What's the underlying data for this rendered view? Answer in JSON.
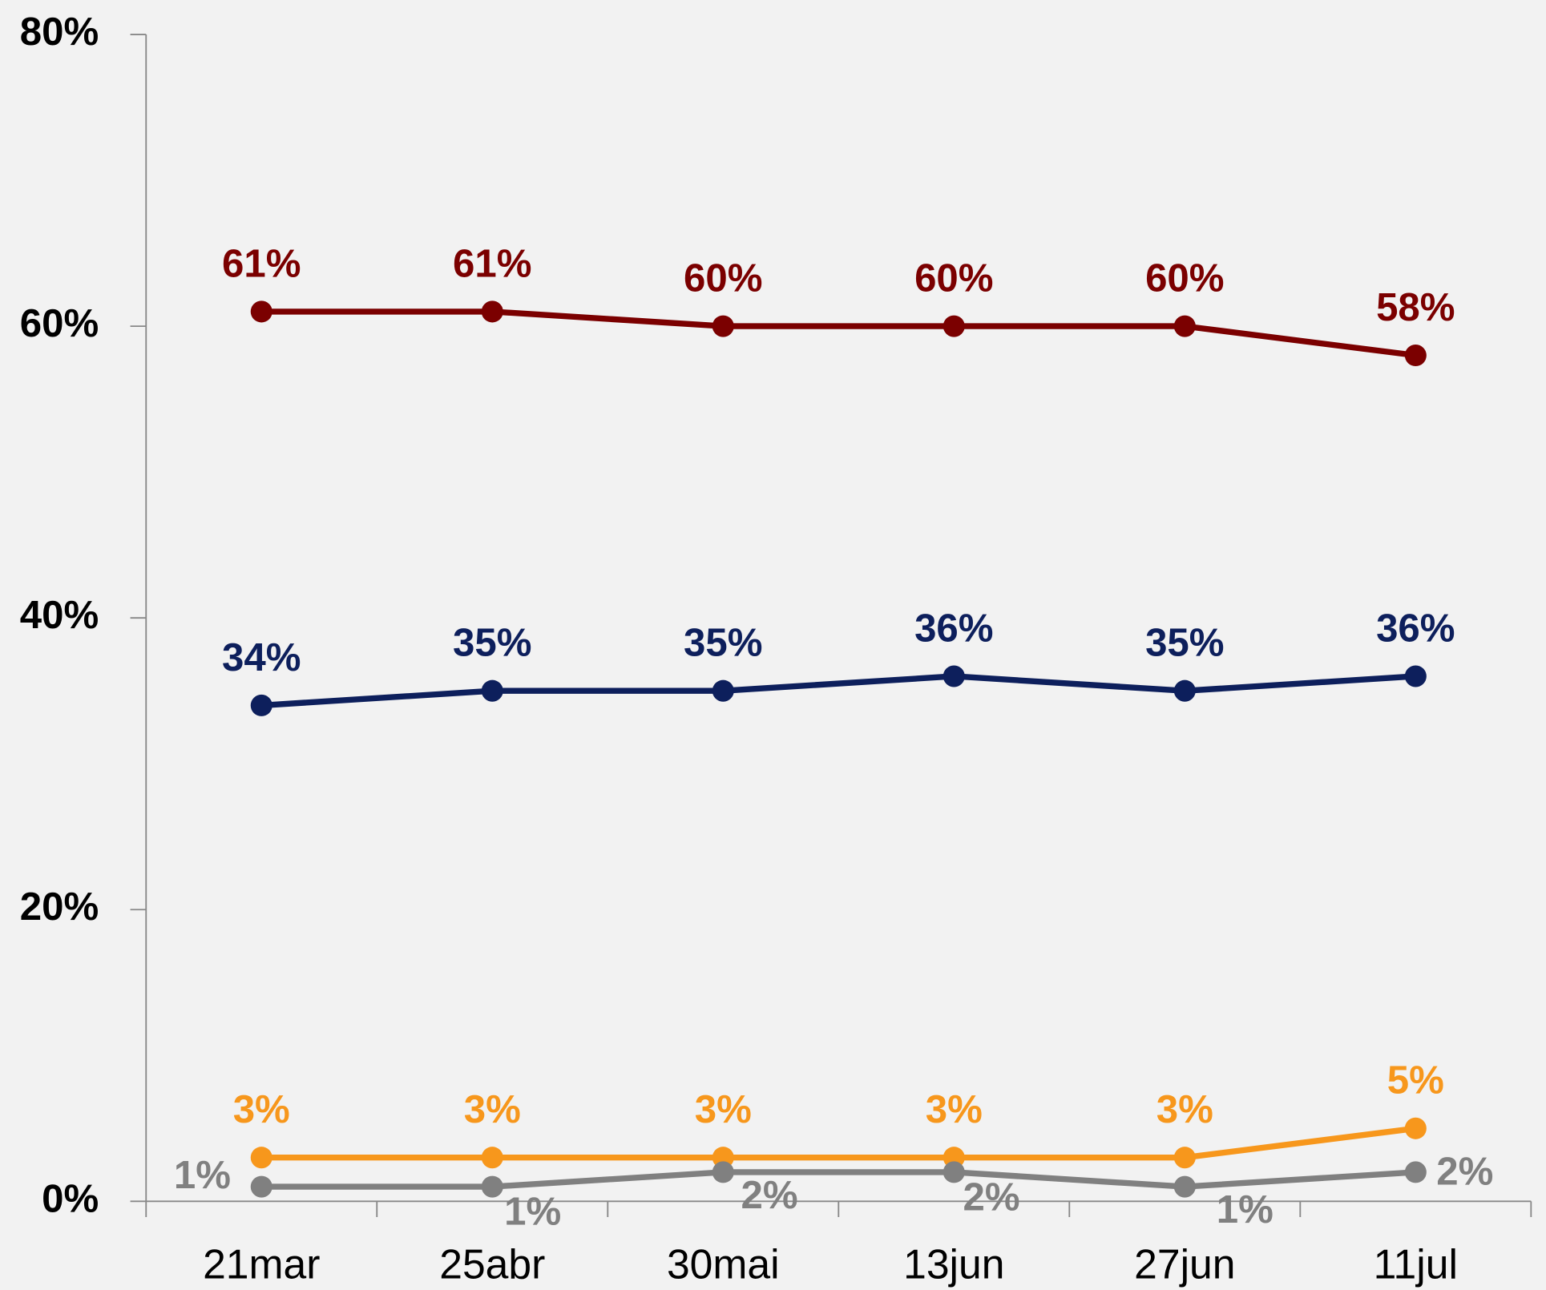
{
  "chart_data": {
    "type": "line",
    "categories": [
      "21mar",
      "25abr",
      "30mai",
      "13jun",
      "27jun",
      "11jul"
    ],
    "series": [
      {
        "color": "#7b0000",
        "values": [
          61,
          61,
          60,
          60,
          60,
          58
        ],
        "value_labels": [
          "61%",
          "61%",
          "60%",
          "60%",
          "60%",
          "58%"
        ]
      },
      {
        "color": "#0d1f5c",
        "values": [
          34,
          35,
          35,
          36,
          35,
          36
        ],
        "value_labels": [
          "34%",
          "35%",
          "35%",
          "36%",
          "35%",
          "36%"
        ]
      },
      {
        "color": "#f7971c",
        "values": [
          3,
          3,
          3,
          3,
          3,
          5
        ],
        "value_labels": [
          "3%",
          "3%",
          "3%",
          "3%",
          "3%",
          "5%"
        ]
      },
      {
        "color": "#808080",
        "values": [
          1,
          1,
          2,
          2,
          1,
          2
        ],
        "value_labels": [
          "1%",
          "1%",
          "2%",
          "2%",
          "1%",
          "2%"
        ]
      }
    ],
    "ylim": [
      0,
      80
    ],
    "yticks": [
      {
        "value": 0,
        "label": "0%"
      },
      {
        "value": 20,
        "label": "20%"
      },
      {
        "value": 40,
        "label": "40%"
      },
      {
        "value": 60,
        "label": "60%"
      },
      {
        "value": 80,
        "label": "80%"
      }
    ]
  }
}
